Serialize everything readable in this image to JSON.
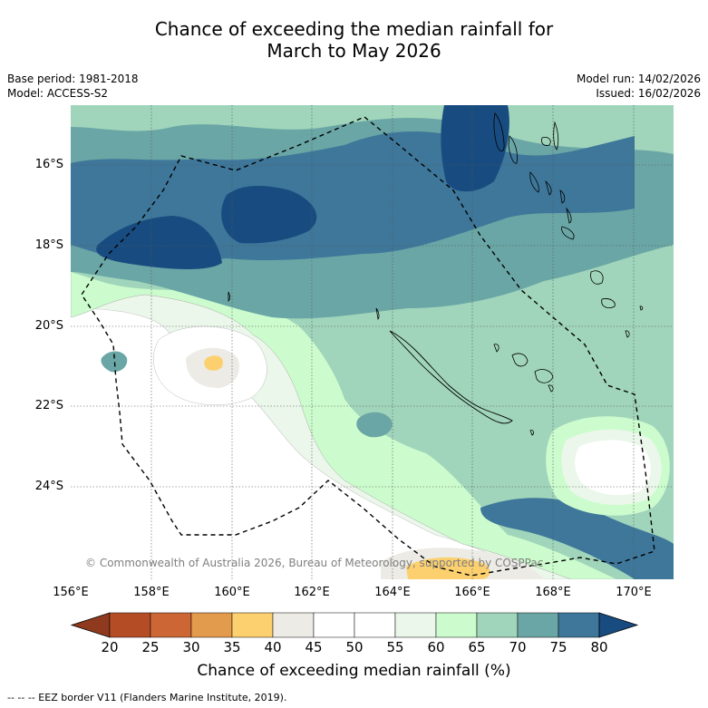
{
  "title": {
    "line1": "Chance of exceeding the median rainfall for",
    "line2": "March to May 2026"
  },
  "meta": {
    "base_period": "Base period: 1981-2018",
    "model": "Model: ACCESS-S2",
    "model_run": "Model run: 14/02/2026",
    "issued": "Issued: 16/02/2026"
  },
  "map": {
    "lat_labels": [
      "16°S",
      "18°S",
      "20°S",
      "22°S",
      "24°S"
    ],
    "lon_labels": [
      "156°E",
      "158°E",
      "160°E",
      "162°E",
      "164°E",
      "166°E",
      "168°E",
      "170°E"
    ],
    "copyright": "© Commonwealth of Australia 2026, Bureau of Meteorology, supported by COSPPac"
  },
  "colorbar": {
    "title": "Chance of exceeding median rainfall (%)",
    "ticks": [
      "20",
      "25",
      "30",
      "35",
      "40",
      "45",
      "50",
      "55",
      "60",
      "65",
      "70",
      "75",
      "80"
    ],
    "colors": [
      "#8f3a1f",
      "#b44c25",
      "#cc6735",
      "#e29a4d",
      "#fcd06e",
      "#ecebe6",
      "#ffffff",
      "#ffffff",
      "#ebf7ea",
      "#ccfccd",
      "#a0d5bb",
      "#6aa6a5",
      "#3e779a",
      "#184c80"
    ]
  },
  "footnote": "--  --  -- EEZ border V11 (Flanders Marine Institute, 2019)."
}
